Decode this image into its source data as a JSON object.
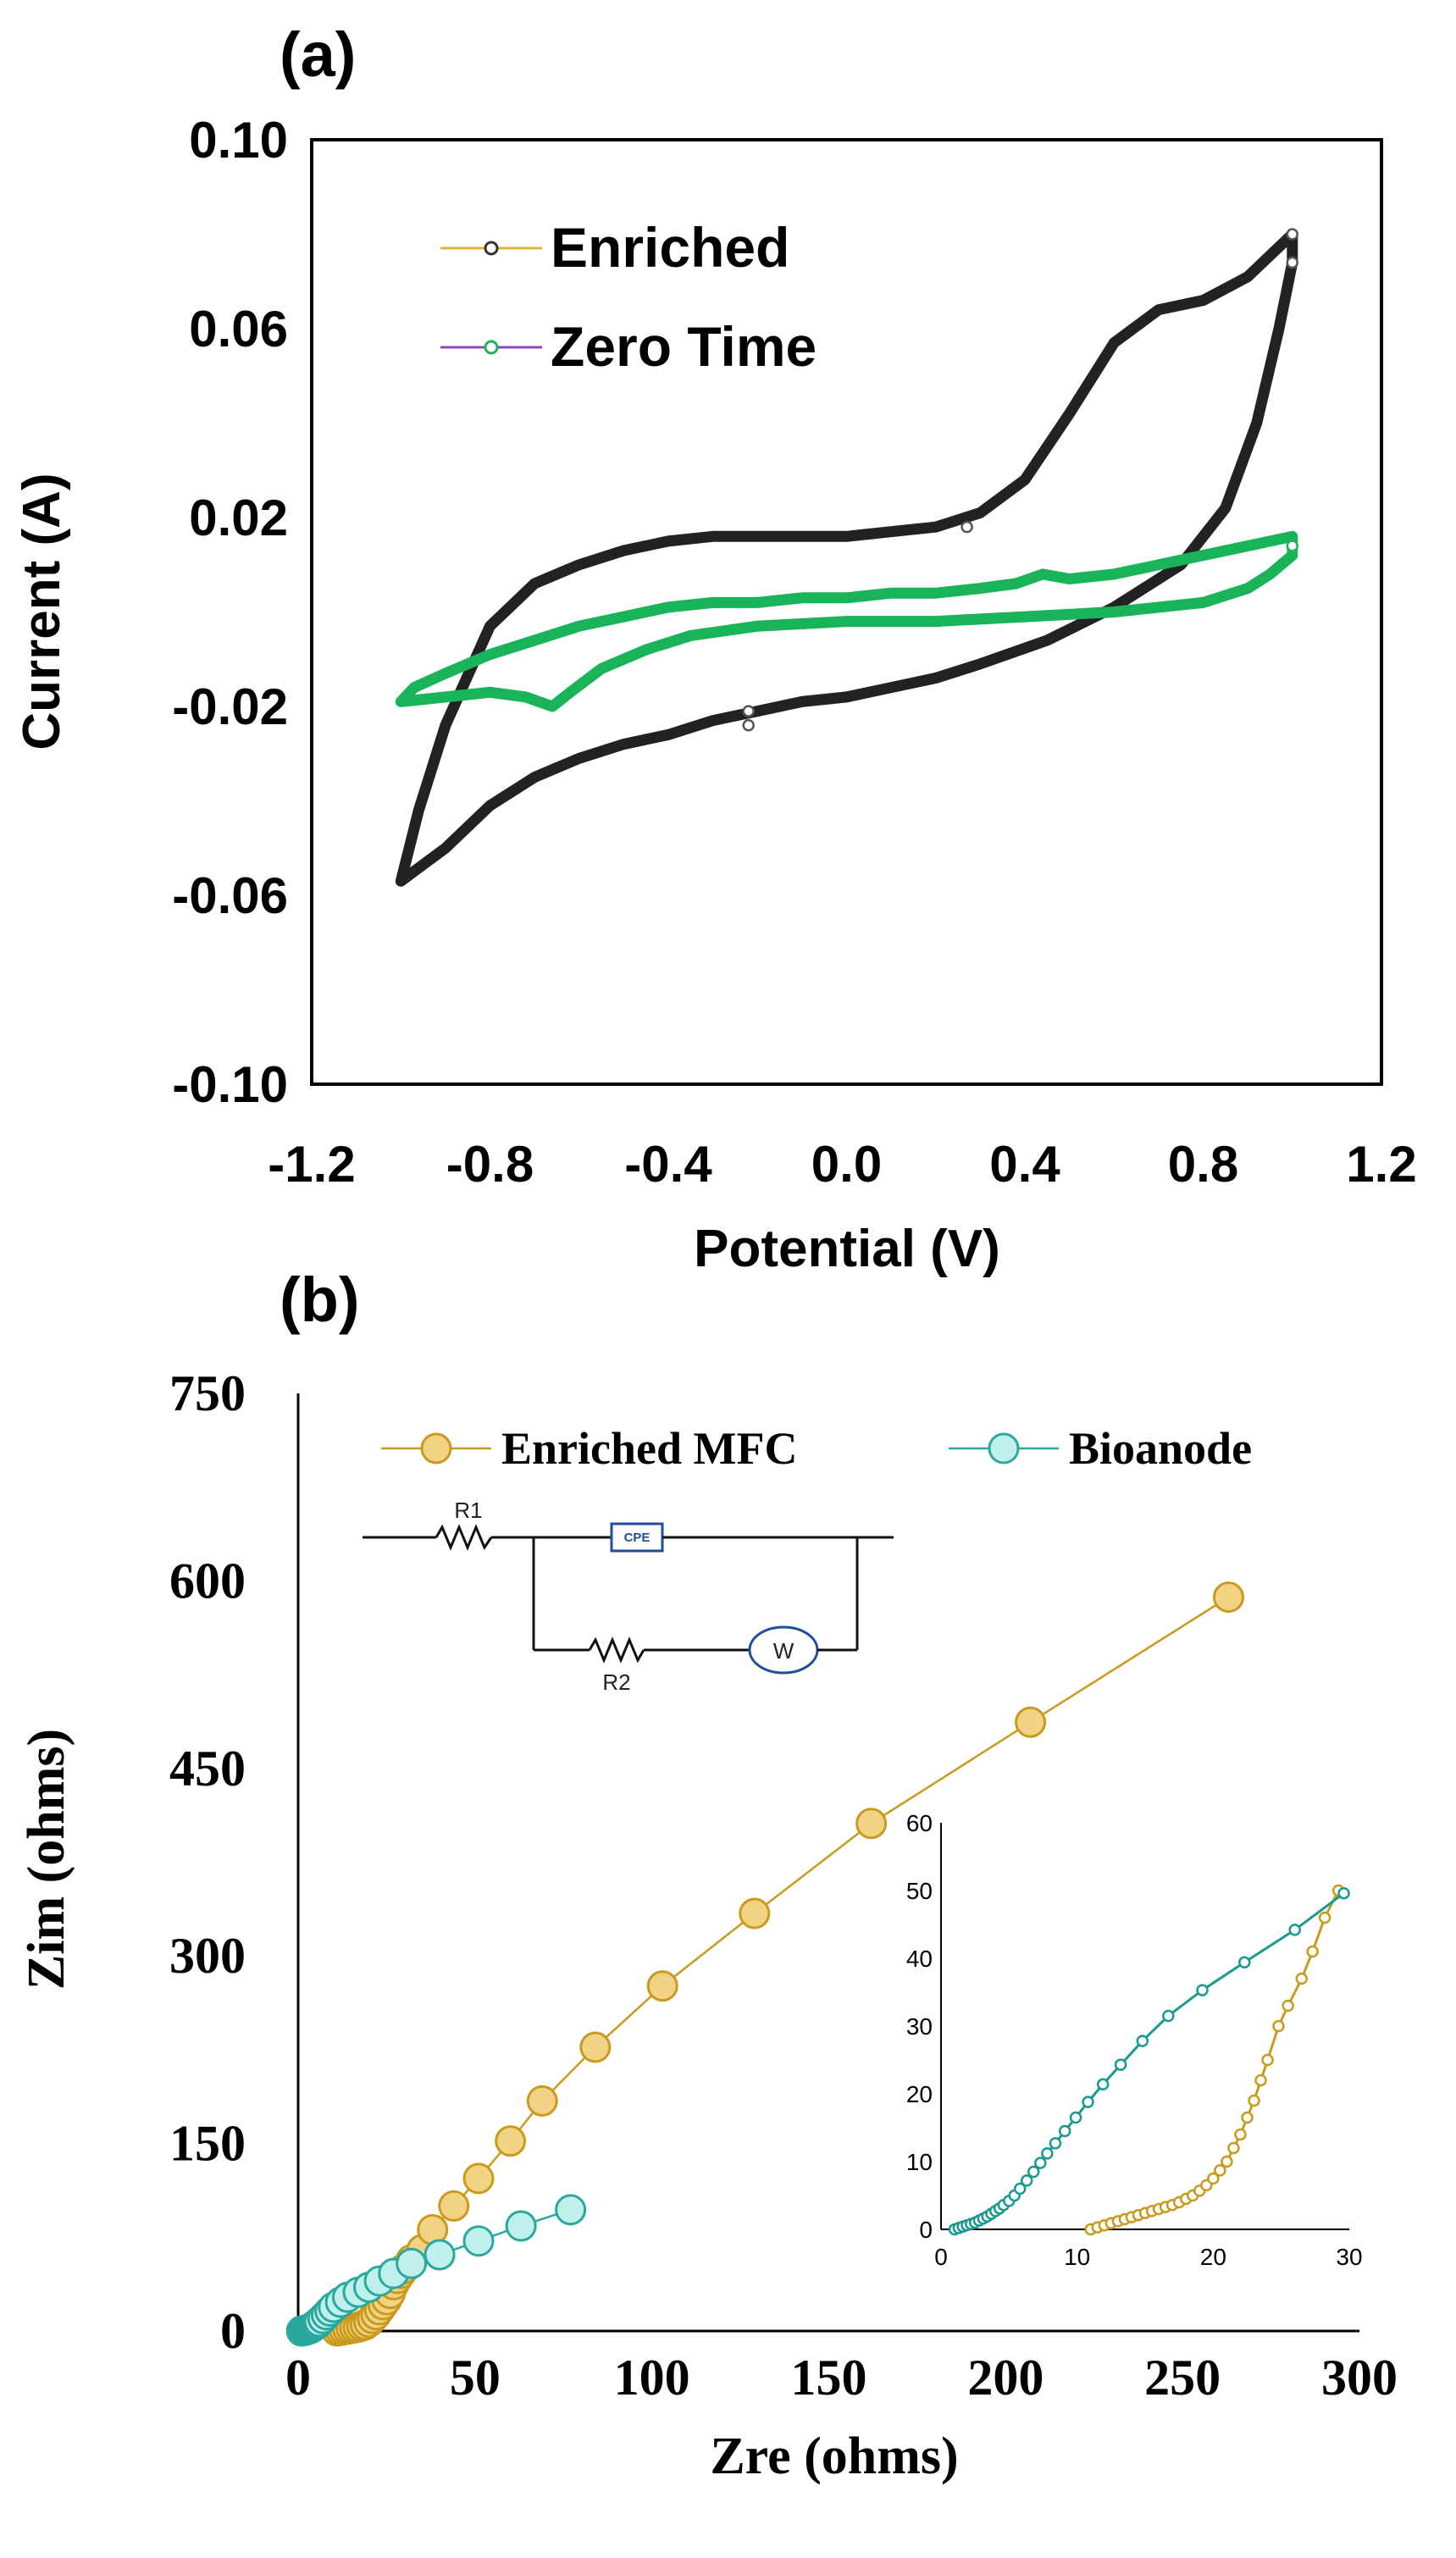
{
  "colors": {
    "enriched_a": "#222222",
    "zero_time_a": "#19b45a",
    "enriched_b_fill": "#f2d386",
    "enriched_b_stroke": "#c99a1e",
    "bioanode_b_fill": "#bff0ec",
    "bioanode_b_stroke": "#2aa89d",
    "inset_enriched": "#c99a1e",
    "inset_bioanode": "#1a9a8f"
  },
  "chart_data": [
    {
      "panel_label": "(a)",
      "type": "line",
      "title": "",
      "xlabel": "Potential (V)",
      "ylabel": "Current (A)",
      "xlim": [
        -1.2,
        1.2
      ],
      "ylim": [
        -0.1,
        0.1
      ],
      "xticks": [
        -1.2,
        -0.8,
        -0.4,
        0.0,
        0.4,
        0.8,
        1.2
      ],
      "xtick_labels": [
        "-1.2",
        "-0.8",
        "-0.4",
        "0.0",
        "0.4",
        "0.8",
        "1.2"
      ],
      "yticks": [
        0.1,
        0.06,
        0.02,
        -0.02,
        -0.06,
        -0.1
      ],
      "ytick_labels": [
        "0.10",
        "0.06",
        "0.02",
        "-0.02",
        "-0.06",
        "-0.10"
      ],
      "legend_position": "top-left",
      "series": [
        {
          "name": "Enriched",
          "legend_line_color": "#e3b23c",
          "points": [
            [
              -1.0,
              -0.057
            ],
            [
              -0.96,
              -0.042
            ],
            [
              -0.9,
              -0.024
            ],
            [
              -0.8,
              -0.003
            ],
            [
              -0.7,
              0.006
            ],
            [
              -0.6,
              0.01
            ],
            [
              -0.5,
              0.013
            ],
            [
              -0.4,
              0.015
            ],
            [
              -0.3,
              0.016
            ],
            [
              -0.2,
              0.016
            ],
            [
              -0.1,
              0.016
            ],
            [
              0.0,
              0.016
            ],
            [
              0.1,
              0.017
            ],
            [
              0.2,
              0.018
            ],
            [
              0.3,
              0.021
            ],
            [
              0.4,
              0.028
            ],
            [
              0.5,
              0.042
            ],
            [
              0.6,
              0.057
            ],
            [
              0.7,
              0.064
            ],
            [
              0.8,
              0.066
            ],
            [
              0.9,
              0.071
            ],
            [
              1.0,
              0.08
            ],
            [
              1.0,
              0.074
            ],
            [
              0.97,
              0.06
            ],
            [
              0.92,
              0.04
            ],
            [
              0.85,
              0.022
            ],
            [
              0.75,
              0.01
            ],
            [
              0.6,
              0.001
            ],
            [
              0.45,
              -0.006
            ],
            [
              0.3,
              -0.011
            ],
            [
              0.2,
              -0.014
            ],
            [
              0.1,
              -0.016
            ],
            [
              0.0,
              -0.018
            ],
            [
              -0.1,
              -0.019
            ],
            [
              -0.2,
              -0.021
            ],
            [
              -0.3,
              -0.023
            ],
            [
              -0.4,
              -0.026
            ],
            [
              -0.5,
              -0.028
            ],
            [
              -0.6,
              -0.031
            ],
            [
              -0.7,
              -0.035
            ],
            [
              -0.8,
              -0.041
            ],
            [
              -0.9,
              -0.05
            ],
            [
              -1.0,
              -0.057
            ]
          ],
          "markers": [
            [
              -0.22,
              -0.024
            ],
            [
              -0.22,
              -0.021
            ],
            [
              0.27,
              0.018
            ],
            [
              1.0,
              0.074
            ],
            [
              1.0,
              0.08
            ]
          ]
        },
        {
          "name": "Zero Time",
          "legend_line_color": "#8a4bb8",
          "points": [
            [
              -1.0,
              -0.019
            ],
            [
              -0.97,
              -0.016
            ],
            [
              -0.9,
              -0.013
            ],
            [
              -0.8,
              -0.009
            ],
            [
              -0.7,
              -0.006
            ],
            [
              -0.6,
              -0.003
            ],
            [
              -0.5,
              -0.001
            ],
            [
              -0.4,
              0.001
            ],
            [
              -0.3,
              0.002
            ],
            [
              -0.2,
              0.002
            ],
            [
              -0.1,
              0.003
            ],
            [
              0.0,
              0.003
            ],
            [
              0.1,
              0.004
            ],
            [
              0.2,
              0.004
            ],
            [
              0.3,
              0.005
            ],
            [
              0.38,
              0.006
            ],
            [
              0.44,
              0.008
            ],
            [
              0.5,
              0.007
            ],
            [
              0.6,
              0.008
            ],
            [
              0.7,
              0.01
            ],
            [
              0.8,
              0.012
            ],
            [
              0.9,
              0.014
            ],
            [
              1.0,
              0.016
            ],
            [
              1.0,
              0.012
            ],
            [
              0.95,
              0.008
            ],
            [
              0.9,
              0.005
            ],
            [
              0.8,
              0.002
            ],
            [
              0.6,
              0.0
            ],
            [
              0.4,
              -0.001
            ],
            [
              0.2,
              -0.002
            ],
            [
              0.0,
              -0.002
            ],
            [
              -0.2,
              -0.003
            ],
            [
              -0.35,
              -0.005
            ],
            [
              -0.45,
              -0.008
            ],
            [
              -0.55,
              -0.012
            ],
            [
              -0.62,
              -0.017
            ],
            [
              -0.66,
              -0.02
            ],
            [
              -0.72,
              -0.018
            ],
            [
              -0.8,
              -0.017
            ],
            [
              -0.9,
              -0.018
            ],
            [
              -1.0,
              -0.019
            ]
          ],
          "markers": [
            [
              1.0,
              0.014
            ]
          ]
        }
      ]
    },
    {
      "panel_label": "(b)",
      "type": "scatter",
      "title": "",
      "xlabel": "Zre (ohms)",
      "ylabel": "Zim (ohms)",
      "xlim": [
        0,
        300
      ],
      "ylim": [
        0,
        750
      ],
      "xticks": [
        0,
        50,
        100,
        150,
        200,
        250,
        300
      ],
      "xtick_labels": [
        "0",
        "50",
        "100",
        "150",
        "200",
        "250",
        "300"
      ],
      "yticks": [
        750,
        600,
        450,
        300,
        150,
        0
      ],
      "ytick_labels": [
        "750",
        "600",
        "450",
        "300",
        "150",
        "0"
      ],
      "legend_position": "top",
      "series": [
        {
          "name": "Enriched MFC",
          "points": [
            [
              11,
              0
            ],
            [
              12,
              0.5
            ],
            [
              13,
              1
            ],
            [
              14,
              1.5
            ],
            [
              15,
              2
            ],
            [
              16,
              2.5
            ],
            [
              17,
              3
            ],
            [
              18,
              4
            ],
            [
              19,
              5
            ],
            [
              20,
              7
            ],
            [
              21,
              10
            ],
            [
              22,
              13
            ],
            [
              23,
              17
            ],
            [
              24,
              21
            ],
            [
              25,
              25
            ],
            [
              26,
              30
            ],
            [
              27,
              37
            ],
            [
              28,
              42
            ],
            [
              29,
              46
            ],
            [
              30,
              50
            ],
            [
              32,
              57
            ],
            [
              35,
              65
            ],
            [
              38,
              81
            ],
            [
              44,
              100
            ],
            [
              51,
              122
            ],
            [
              60,
              152
            ],
            [
              69,
              184
            ],
            [
              84,
              227
            ],
            [
              103,
              276
            ],
            [
              129,
              334
            ],
            [
              162,
              406
            ],
            [
              207,
              487
            ],
            [
              263,
              587
            ]
          ]
        },
        {
          "name": "Bioanode",
          "points": [
            [
              1,
              0
            ],
            [
              1.5,
              0.3
            ],
            [
              2,
              0.6
            ],
            [
              2.5,
              1
            ],
            [
              3,
              1.5
            ],
            [
              3.5,
              2
            ],
            [
              4,
              3
            ],
            [
              4.5,
              4
            ],
            [
              5,
              5
            ],
            [
              5.5,
              6
            ],
            [
              6,
              7.5
            ],
            [
              7,
              10
            ],
            [
              8,
              13
            ],
            [
              9,
              16
            ],
            [
              10,
              19
            ],
            [
              12,
              23
            ],
            [
              14,
              27
            ],
            [
              17,
              31
            ],
            [
              20,
              35
            ],
            [
              23,
              40
            ],
            [
              27,
              46
            ],
            [
              32,
              54
            ],
            [
              40,
              61
            ],
            [
              51,
              72
            ],
            [
              63,
              84
            ],
            [
              77,
              97
            ]
          ]
        }
      ],
      "circuit": {
        "r1_label": "R1",
        "cpe_label": "CPE",
        "r2_label": "R2",
        "w_label": "W"
      },
      "inset": {
        "type": "line",
        "xlim": [
          0,
          30
        ],
        "ylim": [
          0,
          60
        ],
        "xticks": [
          0,
          10,
          20,
          30
        ],
        "xtick_labels": [
          "0",
          "10",
          "20",
          "30"
        ],
        "yticks": [
          60,
          50,
          40,
          30,
          20,
          10,
          0
        ],
        "ytick_labels": [
          "60",
          "50",
          "40",
          "30",
          "20",
          "10",
          "0"
        ],
        "series": [
          {
            "name": "Enriched MFC",
            "points": [
              [
                11,
                0
              ],
              [
                11.5,
                0.3
              ],
              [
                12,
                0.6
              ],
              [
                12.5,
                0.9
              ],
              [
                13,
                1.2
              ],
              [
                13.5,
                1.5
              ],
              [
                14,
                1.8
              ],
              [
                14.5,
                2.1
              ],
              [
                15,
                2.4
              ],
              [
                15.5,
                2.7
              ],
              [
                16,
                3
              ],
              [
                16.5,
                3.3
              ],
              [
                17,
                3.6
              ],
              [
                17.5,
                4
              ],
              [
                18,
                4.5
              ],
              [
                18.5,
                5
              ],
              [
                19,
                5.7
              ],
              [
                19.5,
                6.5
              ],
              [
                20,
                7.5
              ],
              [
                20.5,
                8.7
              ],
              [
                21,
                10
              ],
              [
                21.5,
                12
              ],
              [
                22,
                14
              ],
              [
                22.5,
                16.5
              ],
              [
                23,
                19
              ],
              [
                23.5,
                22
              ],
              [
                24,
                25
              ],
              [
                24.8,
                30
              ],
              [
                25.5,
                33
              ],
              [
                26.5,
                37
              ],
              [
                27.3,
                41
              ],
              [
                28.2,
                46
              ],
              [
                29.2,
                50
              ]
            ]
          },
          {
            "name": "Bioanode",
            "points": [
              [
                1,
                0
              ],
              [
                1.3,
                0.2
              ],
              [
                1.6,
                0.4
              ],
              [
                1.9,
                0.6
              ],
              [
                2.2,
                0.8
              ],
              [
                2.5,
                1
              ],
              [
                2.8,
                1.3
              ],
              [
                3.1,
                1.6
              ],
              [
                3.4,
                1.9
              ],
              [
                3.7,
                2.3
              ],
              [
                4,
                2.7
              ],
              [
                4.3,
                3.1
              ],
              [
                4.6,
                3.6
              ],
              [
                5,
                4.2
              ],
              [
                5.4,
                5
              ],
              [
                5.8,
                6
              ],
              [
                6.3,
                7.2
              ],
              [
                6.8,
                8.5
              ],
              [
                7.3,
                9.8
              ],
              [
                7.8,
                11.2
              ],
              [
                8.4,
                12.7
              ],
              [
                9.1,
                14.5
              ],
              [
                9.9,
                16.5
              ],
              [
                10.8,
                18.8
              ],
              [
                11.9,
                21.4
              ],
              [
                13.2,
                24.3
              ],
              [
                14.8,
                27.8
              ],
              [
                16.7,
                31.5
              ],
              [
                19.2,
                35.3
              ],
              [
                22.3,
                39.4
              ],
              [
                26,
                44.2
              ],
              [
                29.6,
                49.6
              ]
            ]
          }
        ]
      }
    }
  ]
}
